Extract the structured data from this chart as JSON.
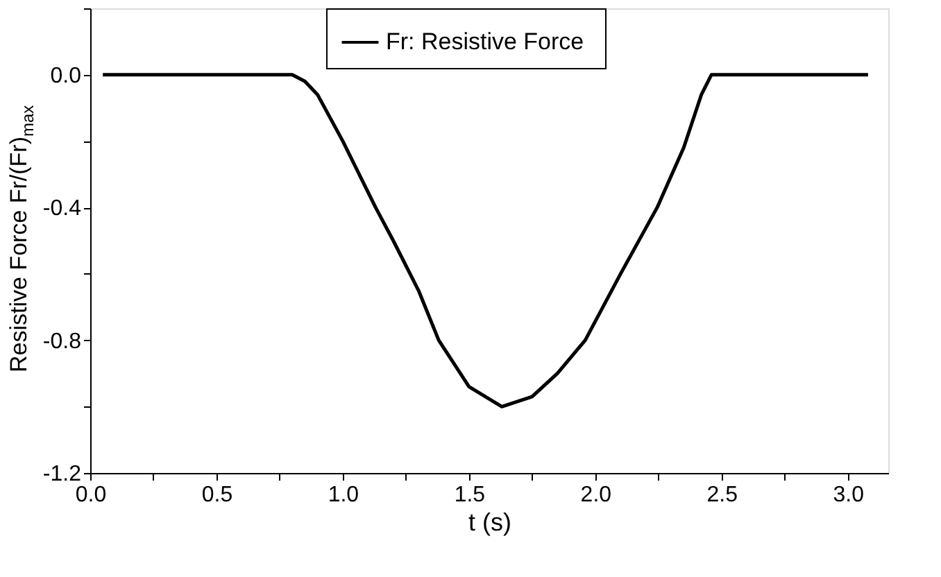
{
  "chart_data": {
    "type": "line",
    "xlabel": "t (s)",
    "ylabel": "Resistive Force Fr/(Fr)$_{max}$",
    "series": [
      {
        "name": "Fr:  Resistive Force",
        "color": "#000000",
        "x": [
          0.05,
          0.8,
          0.85,
          0.9,
          1.0,
          1.13,
          1.2,
          1.3,
          1.38,
          1.5,
          1.63,
          1.75,
          1.85,
          1.96,
          2.1,
          2.245,
          2.35,
          2.42,
          2.46,
          3.08
        ],
        "values": [
          0,
          0,
          -0.02,
          -0.06,
          -0.2,
          -0.4,
          -0.5,
          -0.65,
          -0.8,
          -0.94,
          -1.0,
          -0.97,
          -0.9,
          -0.8,
          -0.6,
          -0.4,
          -0.22,
          -0.06,
          0,
          0
        ]
      }
    ],
    "xlim": [
      0,
      3.16
    ],
    "ylim": [
      -1.2,
      0.2
    ],
    "xticks": [
      {
        "value": 0,
        "label": "0.0"
      },
      {
        "value": 0.25,
        "label": null
      },
      0.5,
      {
        "value": 0.75,
        "label": null
      },
      {
        "value": 1,
        "label": "1.0"
      },
      {
        "value": 1.25,
        "label": null
      },
      1.5,
      {
        "value": 1.75,
        "label": null
      },
      {
        "value": 2,
        "label": "2.0"
      },
      {
        "value": 2.25,
        "label": null
      },
      2.5,
      {
        "value": 2.75,
        "label": null
      },
      {
        "value": 3,
        "label": "3.0"
      }
    ],
    "yticks": [
      -1.2,
      {
        "value": -1.0,
        "label": null
      },
      -0.8,
      {
        "value": -0.6,
        "label": null
      },
      -0.4,
      {
        "value": -0.2,
        "label": null
      },
      {
        "value": 0,
        "label": "0.0"
      },
      {
        "value": 0.2,
        "label": null
      }
    ],
    "grid": false,
    "legend": "top",
    "marker": "none",
    "line_style": "solid"
  }
}
